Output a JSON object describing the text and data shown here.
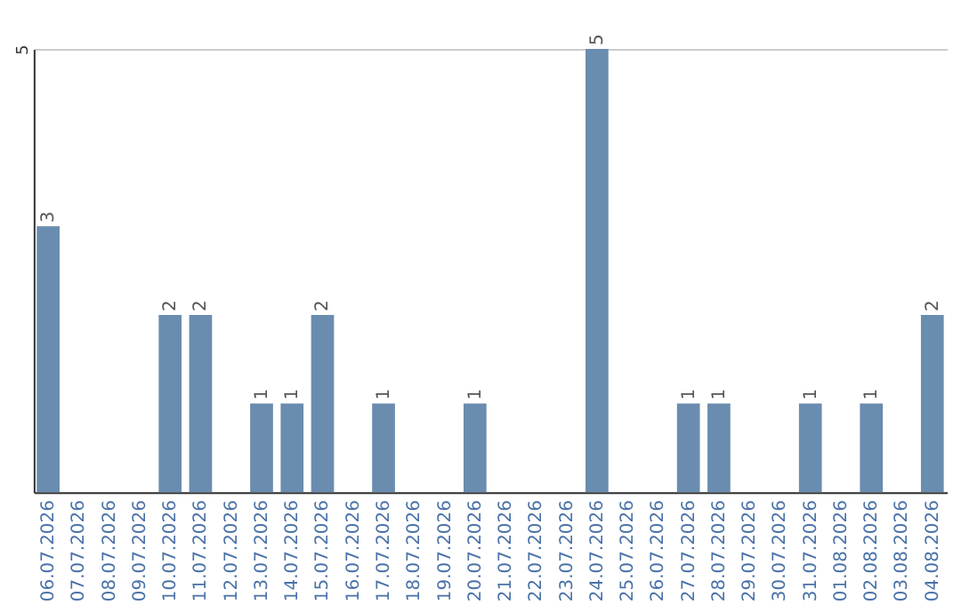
{
  "chart_data": {
    "type": "bar",
    "categories": [
      "06.07.2026",
      "07.07.2026",
      "08.07.2026",
      "09.07.2026",
      "10.07.2026",
      "11.07.2026",
      "12.07.2026",
      "13.07.2026",
      "14.07.2026",
      "15.07.2026",
      "16.07.2026",
      "17.07.2026",
      "18.07.2026",
      "19.07.2026",
      "20.07.2026",
      "21.07.2026",
      "22.07.2026",
      "23.07.2026",
      "24.07.2026",
      "25.07.2026",
      "26.07.2026",
      "27.07.2026",
      "28.07.2026",
      "29.07.2026",
      "30.07.2026",
      "31.07.2026",
      "01.08.2026",
      "02.08.2026",
      "03.08.2026",
      "04.08.2026"
    ],
    "values": [
      3,
      null,
      null,
      null,
      2,
      2,
      null,
      1,
      1,
      2,
      null,
      1,
      null,
      null,
      1,
      null,
      null,
      null,
      5,
      null,
      null,
      1,
      1,
      null,
      null,
      1,
      null,
      1,
      null,
      2
    ],
    "color": "#6a8caf",
    "ylim": [
      0,
      5
    ],
    "yticks": [
      {
        "value": 0,
        "label": null
      },
      5
    ],
    "grid": "y",
    "data_labels": true
  }
}
